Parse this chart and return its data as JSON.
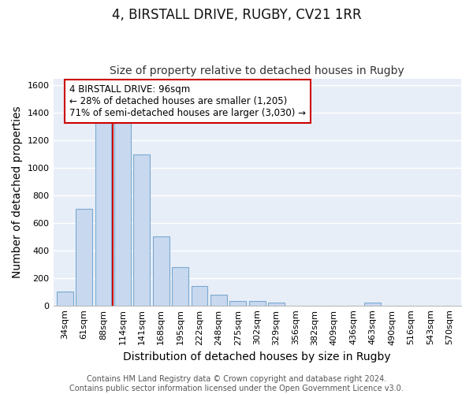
{
  "title": "4, BIRSTALL DRIVE, RUGBY, CV21 1RR",
  "subtitle": "Size of property relative to detached houses in Rugby",
  "xlabel": "Distribution of detached houses by size in Rugby",
  "ylabel": "Number of detached properties",
  "categories": [
    "34sqm",
    "61sqm",
    "88sqm",
    "114sqm",
    "141sqm",
    "168sqm",
    "195sqm",
    "222sqm",
    "248sqm",
    "275sqm",
    "302sqm",
    "329sqm",
    "356sqm",
    "382sqm",
    "409sqm",
    "436sqm",
    "463sqm",
    "490sqm",
    "516sqm",
    "543sqm",
    "570sqm"
  ],
  "values": [
    100,
    700,
    1330,
    1330,
    1100,
    500,
    280,
    140,
    80,
    35,
    35,
    20,
    0,
    0,
    0,
    0,
    20,
    0,
    0,
    0,
    0
  ],
  "bar_color": "#c8d8ee",
  "bar_edge_color": "#7aaad0",
  "bar_width": 0.85,
  "vline_color": "#cc0000",
  "vline_pos": 2.5,
  "ylim": [
    0,
    1650
  ],
  "yticks": [
    0,
    200,
    400,
    600,
    800,
    1000,
    1200,
    1400,
    1600
  ],
  "annotation_text": "4 BIRSTALL DRIVE: 96sqm\n← 28% of detached houses are smaller (1,205)\n71% of semi-detached houses are larger (3,030) →",
  "annotation_box_color": "#ffffff",
  "annotation_box_edge": "#cc0000",
  "footer": "Contains HM Land Registry data © Crown copyright and database right 2024.\nContains public sector information licensed under the Open Government Licence v3.0.",
  "bg_color": "#ffffff",
  "plot_bg_color": "#e8eef8",
  "grid_color": "#ffffff",
  "title_fontsize": 12,
  "subtitle_fontsize": 10,
  "axis_label_fontsize": 10,
  "tick_fontsize": 8,
  "footer_fontsize": 7,
  "annotation_fontsize": 8.5
}
